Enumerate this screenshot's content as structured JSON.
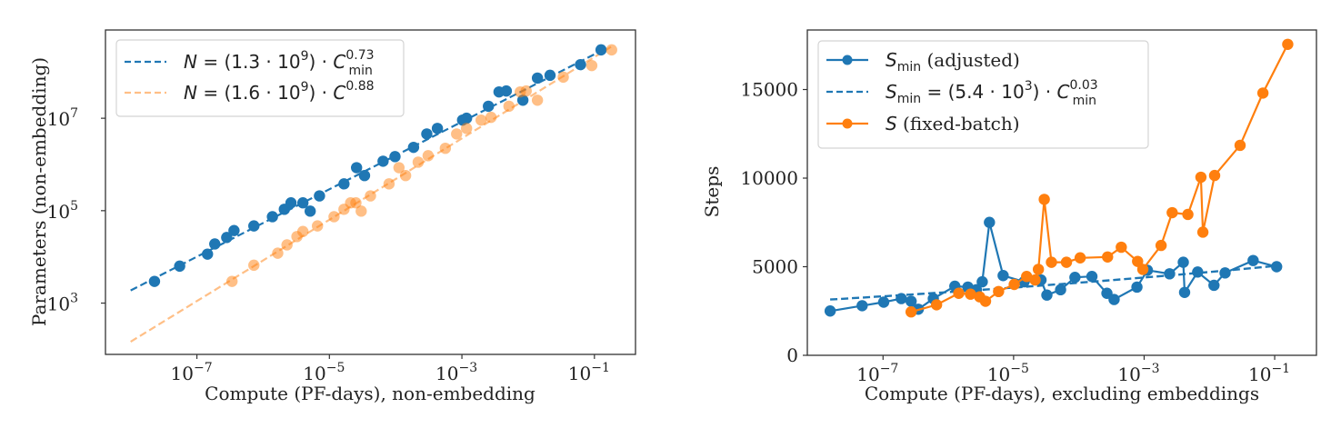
{
  "chart_data": [
    {
      "type": "scatter",
      "id": "left",
      "title": "",
      "xlabel": "Compute (PF-days), non-embedding",
      "ylabel": "Parameters (non-embedding)",
      "xscale": "log",
      "yscale": "log",
      "xlim_log10": [
        -8.38,
        -0.38
      ],
      "ylim_log10": [
        1.89,
        8.91
      ],
      "xticks": [
        {
          "base": "10",
          "exp": "−7",
          "log10": -7
        },
        {
          "base": "10",
          "exp": "−5",
          "log10": -5
        },
        {
          "base": "10",
          "exp": "−3",
          "log10": -3
        },
        {
          "base": "10",
          "exp": "−1",
          "log10": -1
        }
      ],
      "yticks": [
        {
          "base": "10",
          "exp": "3",
          "log10": 3
        },
        {
          "base": "10",
          "exp": "5",
          "log10": 5
        },
        {
          "base": "10",
          "exp": "7",
          "log10": 7
        }
      ],
      "grid": false,
      "legend_position": "top-left",
      "series": [
        {
          "name": "N = (1.3 · 10^9) · C_min^0.73 (points)",
          "color": "#1f77b4",
          "alpha": 1.0,
          "points_log10": [
            [
              -7.64,
              3.47
            ],
            [
              -7.26,
              3.8
            ],
            [
              -6.84,
              4.06
            ],
            [
              -6.73,
              4.28
            ],
            [
              -6.55,
              4.42
            ],
            [
              -6.44,
              4.57
            ],
            [
              -6.14,
              4.67
            ],
            [
              -5.86,
              4.87
            ],
            [
              -5.68,
              5.03
            ],
            [
              -5.58,
              5.17
            ],
            [
              -5.4,
              5.17
            ],
            [
              -5.29,
              4.99
            ],
            [
              -5.15,
              5.32
            ],
            [
              -4.78,
              5.58
            ],
            [
              -4.59,
              5.93
            ],
            [
              -4.47,
              5.76
            ],
            [
              -4.19,
              6.07
            ],
            [
              -4.01,
              6.17
            ],
            [
              -3.73,
              6.37
            ],
            [
              -3.53,
              6.66
            ],
            [
              -3.37,
              6.78
            ],
            [
              -2.99,
              6.96
            ],
            [
              -2.93,
              7.0
            ],
            [
              -2.6,
              7.26
            ],
            [
              -2.44,
              7.57
            ],
            [
              -2.33,
              7.59
            ],
            [
              -2.08,
              7.39
            ],
            [
              -1.86,
              7.87
            ],
            [
              -1.67,
              7.93
            ],
            [
              -1.21,
              8.16
            ],
            [
              -0.9,
              8.48
            ]
          ]
        },
        {
          "name": "N = (1.6 · 10^9) · C^0.88 (points)",
          "color": "#ff7f0e",
          "alpha": 0.5,
          "points_log10": [
            [
              -6.47,
              3.47
            ],
            [
              -6.14,
              3.82
            ],
            [
              -5.78,
              4.08
            ],
            [
              -5.64,
              4.26
            ],
            [
              -5.49,
              4.44
            ],
            [
              -5.4,
              4.55
            ],
            [
              -5.18,
              4.67
            ],
            [
              -4.93,
              4.87
            ],
            [
              -4.78,
              5.03
            ],
            [
              -4.68,
              5.17
            ],
            [
              -4.6,
              5.17
            ],
            [
              -4.52,
              4.99
            ],
            [
              -4.38,
              5.32
            ],
            [
              -4.1,
              5.58
            ],
            [
              -3.95,
              5.93
            ],
            [
              -3.85,
              5.76
            ],
            [
              -3.66,
              6.05
            ],
            [
              -3.51,
              6.19
            ],
            [
              -3.25,
              6.35
            ],
            [
              -3.08,
              6.66
            ],
            [
              -2.93,
              6.78
            ],
            [
              -2.71,
              6.96
            ],
            [
              -2.56,
              7.02
            ],
            [
              -2.29,
              7.26
            ],
            [
              -2.12,
              7.57
            ],
            [
              -2.03,
              7.59
            ],
            [
              -1.86,
              7.39
            ],
            [
              -1.47,
              7.89
            ],
            [
              -1.04,
              8.14
            ],
            [
              -0.74,
              8.48
            ]
          ]
        }
      ],
      "fits": [
        {
          "coef": 1300000000.0,
          "exponent": 0.73,
          "color": "#1f77b4",
          "alpha": 1.0,
          "x_log10_range": [
            -8.0,
            -0.85
          ]
        },
        {
          "coef": 1600000000.0,
          "exponent": 0.88,
          "color": "#ff7f0e",
          "alpha": 0.5,
          "x_log10_range": [
            -8.0,
            -0.72
          ]
        }
      ],
      "legend": [
        {
          "style": "dashed",
          "color": "#1f77b4",
          "alpha": 1.0,
          "lhs": "N",
          "eq": " = (1.3 · 10",
          "pow": "9",
          "mid": ") · ",
          "var": "C",
          "exp": "0.73",
          "sub": "min"
        },
        {
          "style": "dashed",
          "color": "#ff7f0e",
          "alpha": 0.5,
          "lhs": "N",
          "eq": " = (1.6 · 10",
          "pow": "9",
          "mid": ") · ",
          "var": "C",
          "exp": "0.88",
          "sub": ""
        }
      ]
    },
    {
      "type": "line",
      "id": "right",
      "title": "",
      "xlabel": "Compute (PF-days), excluding embeddings",
      "ylabel": "Steps",
      "xscale": "log",
      "yscale": "linear",
      "xlim_log10": [
        -8.16,
        -0.36
      ],
      "ylim": [
        0,
        18360
      ],
      "xticks": [
        {
          "base": "10",
          "exp": "−7",
          "log10": -7
        },
        {
          "base": "10",
          "exp": "−5",
          "log10": -5
        },
        {
          "base": "10",
          "exp": "−3",
          "log10": -3
        },
        {
          "base": "10",
          "exp": "−1",
          "log10": -1
        }
      ],
      "yticks": [
        0,
        5000,
        10000,
        15000
      ],
      "grid": false,
      "legend_position": "top-left",
      "series": [
        {
          "name": "S_min (adjusted)",
          "color": "#1f77b4",
          "points": [
            [
              -7.81,
              2500
            ],
            [
              -7.32,
              2800
            ],
            [
              -6.99,
              3000
            ],
            [
              -6.72,
              3200
            ],
            [
              -6.57,
              3050
            ],
            [
              -6.46,
              2600
            ],
            [
              -6.23,
              3200
            ],
            [
              -5.9,
              3900
            ],
            [
              -5.7,
              3850
            ],
            [
              -5.57,
              3700
            ],
            [
              -5.48,
              4150
            ],
            [
              -5.37,
              7500
            ],
            [
              -5.16,
              4500
            ],
            [
              -4.84,
              4150
            ],
            [
              -4.58,
              4250
            ],
            [
              -4.49,
              3400
            ],
            [
              -4.28,
              3700
            ],
            [
              -4.06,
              4400
            ],
            [
              -3.8,
              4450
            ],
            [
              -3.57,
              3500
            ],
            [
              -3.46,
              3150
            ],
            [
              -3.11,
              3850
            ],
            [
              -2.95,
              4800
            ],
            [
              -2.61,
              4600
            ],
            [
              -2.4,
              5250
            ],
            [
              -2.38,
              3550
            ],
            [
              -2.18,
              4700
            ],
            [
              -1.93,
              3950
            ],
            [
              -1.76,
              4650
            ],
            [
              -1.33,
              5350
            ],
            [
              -0.97,
              5000
            ]
          ]
        },
        {
          "name": "S (fixed-batch)",
          "color": "#ff7f0e",
          "points": [
            [
              -6.57,
              2450
            ],
            [
              -6.18,
              2850
            ],
            [
              -5.84,
              3500
            ],
            [
              -5.66,
              3450
            ],
            [
              -5.52,
              3300
            ],
            [
              -5.43,
              3050
            ],
            [
              -5.23,
              3600
            ],
            [
              -4.99,
              4000
            ],
            [
              -4.8,
              4450
            ],
            [
              -4.67,
              4250
            ],
            [
              -4.62,
              4850
            ],
            [
              -4.53,
              8800
            ],
            [
              -4.42,
              5250
            ],
            [
              -4.19,
              5250
            ],
            [
              -3.98,
              5500
            ],
            [
              -3.56,
              5550
            ],
            [
              -3.35,
              6100
            ],
            [
              -3.1,
              5300
            ],
            [
              -3.02,
              4850
            ],
            [
              -2.74,
              6200
            ],
            [
              -2.57,
              8050
            ],
            [
              -2.33,
              7950
            ],
            [
              -2.13,
              10050
            ],
            [
              -2.1,
              6950
            ],
            [
              -1.92,
              10150
            ],
            [
              -1.53,
              11850
            ],
            [
              -1.18,
              14800
            ],
            [
              -0.8,
              17550
            ]
          ]
        }
      ],
      "fits": [
        {
          "coef": 5400,
          "exponent": 0.03,
          "color": "#1f77b4",
          "x_log10_range": [
            -7.81,
            -0.97
          ]
        }
      ],
      "legend": [
        {
          "style": "line-marker",
          "color": "#1f77b4",
          "lhs": "S",
          "sub": "min",
          "text": " (adjusted)"
        },
        {
          "style": "dashed",
          "color": "#1f77b4",
          "lhs": "S",
          "sub": "min",
          "eq": " = (5.4 · 10",
          "pow": "3",
          "mid": ") · ",
          "var": "C",
          "exp": "0.03",
          "sub2": "min"
        },
        {
          "style": "line-marker",
          "color": "#ff7f0e",
          "lhs": "S",
          "sub": "",
          "text": " (fixed-batch)"
        }
      ]
    }
  ]
}
